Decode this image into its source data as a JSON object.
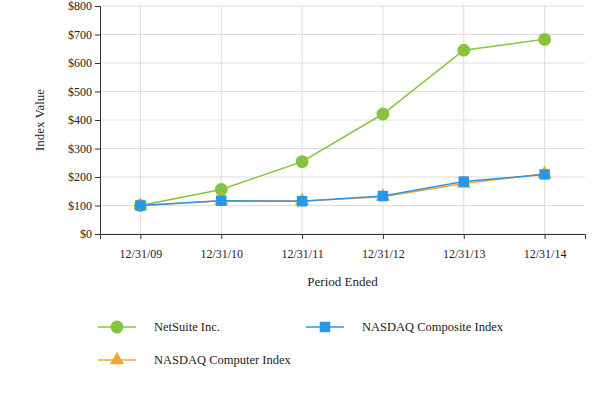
{
  "chart_data": {
    "type": "line",
    "x_label": "Period Ended",
    "y_label": "Index Value",
    "categories": [
      "12/31/09",
      "12/31/10",
      "12/31/11",
      "12/31/12",
      "12/31/13",
      "12/31/14"
    ],
    "series": [
      {
        "name": "NetSuite Inc.",
        "color": "#86c43c",
        "marker": "circle",
        "line_style": "solid",
        "values": [
          100,
          156,
          254,
          421,
          645,
          683
        ]
      },
      {
        "name": "NASDAQ Composite Index",
        "color": "#2a96e8",
        "marker": "square",
        "line_style": "solid",
        "values": [
          100,
          117,
          115,
          133,
          184,
          209
        ]
      },
      {
        "name": "NASDAQ Computer Index",
        "color": "#f0a92e",
        "marker": "triangle",
        "line_style": "solid",
        "values": [
          100,
          117,
          116,
          131,
          177,
          211
        ]
      }
    ],
    "ylim": [
      0,
      800
    ],
    "yticks": [
      {
        "value": 0,
        "label": "$0"
      },
      {
        "value": 100,
        "label": "$100"
      },
      {
        "value": 200,
        "label": "$200"
      },
      {
        "value": 300,
        "label": "$300"
      },
      {
        "value": 400,
        "label": "$400"
      },
      {
        "value": 500,
        "label": "$500"
      },
      {
        "value": 600,
        "label": "$600"
      },
      {
        "value": 700,
        "label": "$700"
      },
      {
        "value": 800,
        "label": "$800"
      }
    ],
    "grid": true,
    "legend": "bottom"
  }
}
